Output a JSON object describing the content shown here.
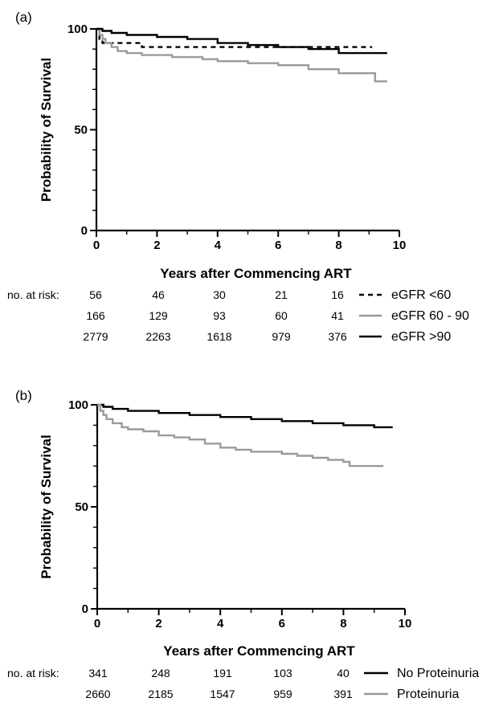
{
  "chart_data": [
    {
      "type": "line",
      "panel_label": "(a)",
      "xlabel": "Years after Commencing ART",
      "ylabel": "Probability of Survival",
      "xlim": [
        0,
        10
      ],
      "ylim": [
        0,
        100
      ],
      "x_ticks": [
        "0",
        "2",
        "4",
        "6",
        "8",
        "10"
      ],
      "y_ticks": [
        "0",
        "50",
        "100"
      ],
      "risk_table_label": "no. at risk:",
      "series": [
        {
          "name": "eGFR <60",
          "color": "#000000",
          "dash": "dashed",
          "points": [
            [
              0,
              100
            ],
            [
              0.1,
              95
            ],
            [
              0.2,
              93
            ],
            [
              1.5,
              93
            ],
            [
              1.5,
              91
            ],
            [
              9.1,
              91
            ]
          ],
          "at_risk": [
            "56",
            "46",
            "30",
            "21",
            "16"
          ]
        },
        {
          "name": "eGFR 60 - 90",
          "color": "#9a9a9a",
          "dash": "solid",
          "points": [
            [
              0,
              100
            ],
            [
              0.1,
              97
            ],
            [
              0.2,
              95
            ],
            [
              0.3,
              93
            ],
            [
              0.5,
              91
            ],
            [
              0.7,
              89
            ],
            [
              1.0,
              88
            ],
            [
              1.5,
              87
            ],
            [
              2.0,
              87
            ],
            [
              2.5,
              86
            ],
            [
              3.0,
              86
            ],
            [
              3.5,
              85
            ],
            [
              4.0,
              84
            ],
            [
              5.0,
              83
            ],
            [
              6.0,
              82
            ],
            [
              7.0,
              80
            ],
            [
              8.0,
              78
            ],
            [
              9.0,
              78
            ],
            [
              9.2,
              74
            ],
            [
              9.6,
              74
            ]
          ],
          "at_risk": [
            "166",
            "129",
            "93",
            "60",
            "41"
          ]
        },
        {
          "name": "eGFR >90",
          "color": "#000000",
          "dash": "solid",
          "points": [
            [
              0,
              100
            ],
            [
              0.2,
              99
            ],
            [
              0.5,
              98
            ],
            [
              1.0,
              97
            ],
            [
              2.0,
              96
            ],
            [
              3.0,
              95
            ],
            [
              4.0,
              93
            ],
            [
              5.0,
              92
            ],
            [
              6.0,
              91
            ],
            [
              7.0,
              90
            ],
            [
              8.0,
              88
            ],
            [
              9.0,
              88
            ],
            [
              9.6,
              88
            ]
          ],
          "at_risk": [
            "2779",
            "2263",
            "1618",
            "979",
            "376"
          ]
        }
      ]
    },
    {
      "type": "line",
      "panel_label": "(b)",
      "xlabel": "Years after Commencing ART",
      "ylabel": "Probability of Survival",
      "xlim": [
        0,
        10
      ],
      "ylim": [
        0,
        100
      ],
      "x_ticks": [
        "0",
        "2",
        "4",
        "6",
        "8",
        "10"
      ],
      "y_ticks": [
        "0",
        "50",
        "100"
      ],
      "risk_table_label": "no. at risk:",
      "series": [
        {
          "name": "No Proteinuria",
          "color": "#000000",
          "dash": "solid",
          "points": [
            [
              0,
              100
            ],
            [
              0.2,
              99
            ],
            [
              0.5,
              98
            ],
            [
              1.0,
              97
            ],
            [
              2.0,
              96
            ],
            [
              3.0,
              95
            ],
            [
              4.0,
              94
            ],
            [
              5.0,
              93
            ],
            [
              6.0,
              92
            ],
            [
              7.0,
              91
            ],
            [
              8.0,
              90
            ],
            [
              9.0,
              89
            ],
            [
              9.6,
              89
            ]
          ],
          "at_risk": [
            "341",
            "248",
            "191",
            "103",
            "40"
          ]
        },
        {
          "name": "Proteinuria",
          "color": "#9a9a9a",
          "dash": "solid",
          "points": [
            [
              0,
              100
            ],
            [
              0.1,
              97
            ],
            [
              0.2,
              95
            ],
            [
              0.3,
              93
            ],
            [
              0.5,
              91
            ],
            [
              0.8,
              89
            ],
            [
              1.0,
              88
            ],
            [
              1.5,
              87
            ],
            [
              2.0,
              85
            ],
            [
              2.5,
              84
            ],
            [
              3.0,
              83
            ],
            [
              3.5,
              81
            ],
            [
              4.0,
              79
            ],
            [
              4.5,
              78
            ],
            [
              5.0,
              77
            ],
            [
              6.0,
              76
            ],
            [
              6.5,
              75
            ],
            [
              7.0,
              74
            ],
            [
              7.5,
              73
            ],
            [
              8.0,
              72
            ],
            [
              8.2,
              70
            ],
            [
              9.0,
              70
            ],
            [
              9.3,
              70
            ]
          ],
          "at_risk": [
            "2660",
            "2185",
            "1547",
            "959",
            "391"
          ]
        }
      ]
    }
  ]
}
